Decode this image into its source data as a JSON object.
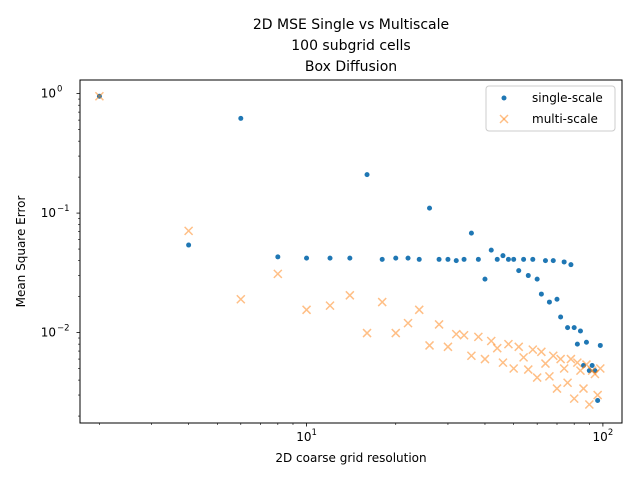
{
  "chart_data": {
    "type": "scatter",
    "title_lines": [
      "2D MSE Single vs Multiscale",
      "100 subgrid cells",
      "Box Diffusion"
    ],
    "xlabel": "2D coarse grid resolution",
    "ylabel": "Mean Square Error",
    "xscale": "log",
    "yscale": "log",
    "xlim": [
      1.72,
      116
    ],
    "ylim": [
      0.00175,
      1.3
    ],
    "grid": false,
    "legend_position": "top-right",
    "x_ticks": [
      {
        "value": 10,
        "base": "10",
        "exp": "1"
      },
      {
        "value": 100,
        "base": "10",
        "exp": "2"
      }
    ],
    "y_ticks": [
      {
        "value": 0.01,
        "base": "10",
        "exp": "−2"
      },
      {
        "value": 0.1,
        "base": "10",
        "exp": "−1"
      },
      {
        "value": 1,
        "base": "10",
        "exp": "0"
      }
    ],
    "series": [
      {
        "name": "single-scale",
        "marker": "dot",
        "color": "#1f77b4",
        "points": [
          [
            2,
            0.95
          ],
          [
            4,
            0.054
          ],
          [
            6,
            0.62
          ],
          [
            8,
            0.043
          ],
          [
            10,
            0.042
          ],
          [
            12,
            0.042
          ],
          [
            14,
            0.042
          ],
          [
            16,
            0.21
          ],
          [
            18,
            0.041
          ],
          [
            20,
            0.042
          ],
          [
            22,
            0.042
          ],
          [
            24,
            0.041
          ],
          [
            26,
            0.11
          ],
          [
            28,
            0.041
          ],
          [
            30,
            0.041
          ],
          [
            32,
            0.04
          ],
          [
            34,
            0.041
          ],
          [
            36,
            0.068
          ],
          [
            38,
            0.041
          ],
          [
            40,
            0.028
          ],
          [
            42,
            0.049
          ],
          [
            44,
            0.041
          ],
          [
            46,
            0.044
          ],
          [
            48,
            0.041
          ],
          [
            50,
            0.041
          ],
          [
            52,
            0.033
          ],
          [
            54,
            0.041
          ],
          [
            56,
            0.03
          ],
          [
            58,
            0.041
          ],
          [
            60,
            0.028
          ],
          [
            62,
            0.021
          ],
          [
            64,
            0.04
          ],
          [
            66,
            0.018
          ],
          [
            68,
            0.04
          ],
          [
            70,
            0.019
          ],
          [
            72,
            0.0135
          ],
          [
            74,
            0.039
          ],
          [
            76,
            0.011
          ],
          [
            78,
            0.037
          ],
          [
            80,
            0.011
          ],
          [
            82,
            0.008
          ],
          [
            84,
            0.0103
          ],
          [
            86,
            0.0053
          ],
          [
            88,
            0.0083
          ],
          [
            90,
            0.0048
          ],
          [
            92,
            0.0053
          ],
          [
            94,
            0.0048
          ],
          [
            96,
            0.0027
          ],
          [
            98,
            0.0078
          ]
        ]
      },
      {
        "name": "multi-scale",
        "marker": "x",
        "color": "#ff7f0e",
        "points": [
          [
            2,
            0.95
          ],
          [
            4,
            0.071
          ],
          [
            6,
            0.019
          ],
          [
            8,
            0.031
          ],
          [
            10,
            0.0155
          ],
          [
            12,
            0.0168
          ],
          [
            14,
            0.0205
          ],
          [
            16,
            0.0099
          ],
          [
            18,
            0.018
          ],
          [
            20,
            0.0099
          ],
          [
            22,
            0.012
          ],
          [
            24,
            0.0155
          ],
          [
            26,
            0.0078
          ],
          [
            28,
            0.0117
          ],
          [
            30,
            0.0076
          ],
          [
            32,
            0.0097
          ],
          [
            34,
            0.0095
          ],
          [
            36,
            0.0064
          ],
          [
            38,
            0.0092
          ],
          [
            40,
            0.006
          ],
          [
            42,
            0.0085
          ],
          [
            44,
            0.0074
          ],
          [
            46,
            0.0056
          ],
          [
            48,
            0.008
          ],
          [
            50,
            0.005
          ],
          [
            52,
            0.0076
          ],
          [
            54,
            0.0062
          ],
          [
            56,
            0.0049
          ],
          [
            58,
            0.0072
          ],
          [
            60,
            0.0042
          ],
          [
            62,
            0.0069
          ],
          [
            64,
            0.0055
          ],
          [
            66,
            0.0043
          ],
          [
            68,
            0.0064
          ],
          [
            70,
            0.0034
          ],
          [
            72,
            0.006
          ],
          [
            74,
            0.005
          ],
          [
            76,
            0.0038
          ],
          [
            78,
            0.006
          ],
          [
            80,
            0.0028
          ],
          [
            82,
            0.0056
          ],
          [
            84,
            0.0048
          ],
          [
            86,
            0.0034
          ],
          [
            88,
            0.0054
          ],
          [
            90,
            0.0025
          ],
          [
            92,
            0.0048
          ],
          [
            94,
            0.0045
          ],
          [
            96,
            0.003
          ],
          [
            98,
            0.005
          ]
        ]
      }
    ]
  }
}
